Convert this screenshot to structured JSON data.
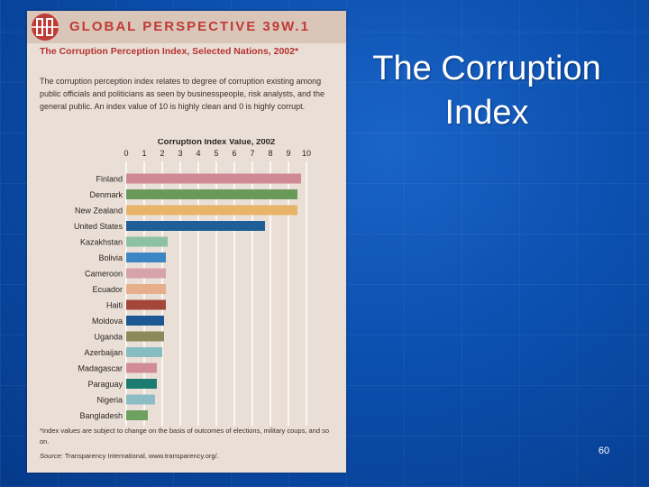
{
  "slide": {
    "title": "The Corruption Index",
    "page_number": "60"
  },
  "panel": {
    "header": "GLOBAL PERSPECTIVE 39W.1",
    "chart_title": "The Corruption Perception Index, Selected Nations, 2002*",
    "description": "The corruption perception index relates to degree of corruption existing among public officials and politicians as seen by businesspeople, risk analysts, and the general public. An index value of 10 is highly clean and 0 is highly corrupt.",
    "footnote": "*Index values are subject to change on the basis of outcomes of elections, military coups, and so on.",
    "source_label": "Source:",
    "source_text": "Transparency International, www.transparency.org/."
  },
  "chart_data": {
    "type": "bar",
    "orientation": "horizontal",
    "title": "Corruption Index Value, 2002",
    "xlim": [
      0,
      10
    ],
    "xticks": [
      "0",
      "1",
      "2",
      "3",
      "4",
      "5",
      "6",
      "7",
      "8",
      "9",
      "10"
    ],
    "categories": [
      "Finland",
      "Denmark",
      "New Zealand",
      "United States",
      "Kazakhstan",
      "Bolivia",
      "Cameroon",
      "Ecuador",
      "Haiti",
      "Moldova",
      "Uganda",
      "Azerbaijan",
      "Madagascar",
      "Paraguay",
      "Nigeria",
      "Bangladesh"
    ],
    "values": [
      9.7,
      9.5,
      9.5,
      7.7,
      2.3,
      2.2,
      2.2,
      2.2,
      2.2,
      2.1,
      2.1,
      2.0,
      1.7,
      1.7,
      1.6,
      1.2
    ],
    "colors": [
      "#cf8a96",
      "#6a9a5a",
      "#e8b46a",
      "#1f5e96",
      "#8cc2a2",
      "#3c86c4",
      "#d6a2ac",
      "#e6ae8a",
      "#a4463a",
      "#1c5894",
      "#8c8a5a",
      "#86bcc2",
      "#d28c98",
      "#1c7c70",
      "#8cbcc4",
      "#6ea060"
    ]
  }
}
